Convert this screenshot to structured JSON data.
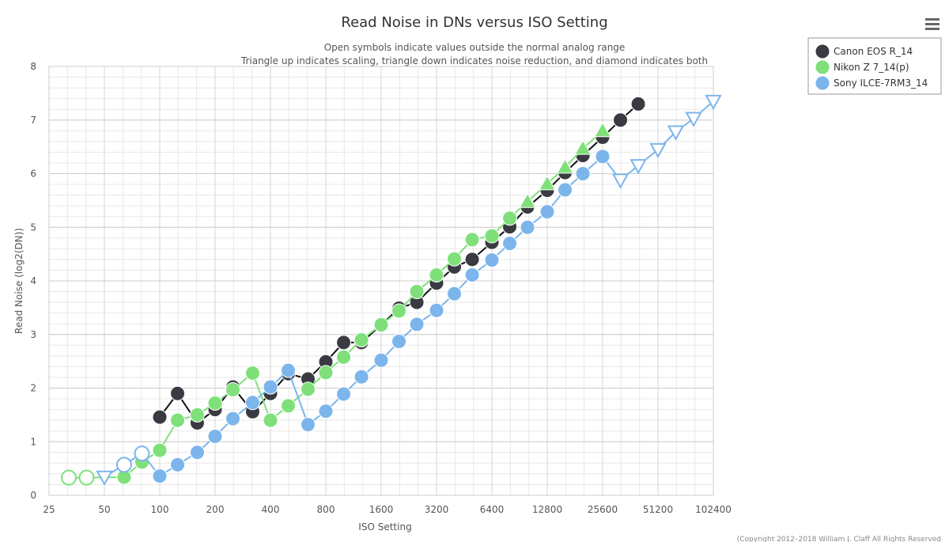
{
  "chart_data": {
    "type": "line",
    "title": "Read Noise in DNs versus ISO Setting",
    "subtitle_lines": [
      "Open symbols indicate values outside the normal analog range",
      "Triangle up indicates scaling, triangle down indicates noise reduction, and diamond indicates both"
    ],
    "xlabel": "ISO Setting",
    "ylabel": "Read Noise (log2(DN))",
    "x_scale": "log2",
    "xlim": [
      25,
      102400
    ],
    "ylim": [
      0,
      8
    ],
    "x_ticks": [
      25,
      50,
      100,
      200,
      400,
      800,
      1600,
      3200,
      6400,
      12800,
      25600,
      51200,
      102400
    ],
    "y_ticks": [
      0,
      1,
      2,
      3,
      4,
      5,
      6,
      7,
      8
    ],
    "grid": true,
    "legend_position": "top-right",
    "credits": "(Copyright 2012–2018 William J. Claff All Rights Reserved",
    "series": [
      {
        "name": "Canon EOS R_14",
        "color": "#3a3a42",
        "line_color": "#111111",
        "points": [
          {
            "x": 100,
            "y": 1.46,
            "m": "circle"
          },
          {
            "x": 125,
            "y": 1.9,
            "m": "circle"
          },
          {
            "x": 160,
            "y": 1.35,
            "m": "circle"
          },
          {
            "x": 200,
            "y": 1.6,
            "m": "circle"
          },
          {
            "x": 250,
            "y": 2.02,
            "m": "circle"
          },
          {
            "x": 320,
            "y": 1.56,
            "m": "circle"
          },
          {
            "x": 400,
            "y": 1.9,
            "m": "circle"
          },
          {
            "x": 500,
            "y": 2.27,
            "m": "circle"
          },
          {
            "x": 640,
            "y": 2.17,
            "m": "circle"
          },
          {
            "x": 800,
            "y": 2.49,
            "m": "circle"
          },
          {
            "x": 1000,
            "y": 2.85,
            "m": "circle"
          },
          {
            "x": 1250,
            "y": 2.85,
            "m": "circle"
          },
          {
            "x": 1600,
            "y": 3.18,
            "m": "circle"
          },
          {
            "x": 2000,
            "y": 3.49,
            "m": "circle"
          },
          {
            "x": 2500,
            "y": 3.6,
            "m": "circle"
          },
          {
            "x": 3200,
            "y": 3.96,
            "m": "circle"
          },
          {
            "x": 4000,
            "y": 4.26,
            "m": "circle"
          },
          {
            "x": 5000,
            "y": 4.4,
            "m": "circle"
          },
          {
            "x": 6400,
            "y": 4.72,
            "m": "circle"
          },
          {
            "x": 8000,
            "y": 5.01,
            "m": "circle"
          },
          {
            "x": 10000,
            "y": 5.38,
            "m": "circle"
          },
          {
            "x": 12800,
            "y": 5.69,
            "m": "circle"
          },
          {
            "x": 16000,
            "y": 6.02,
            "m": "circle"
          },
          {
            "x": 20000,
            "y": 6.34,
            "m": "circle"
          },
          {
            "x": 25600,
            "y": 6.68,
            "m": "circle"
          },
          {
            "x": 32000,
            "y": 7.0,
            "m": "circle"
          },
          {
            "x": 40000,
            "y": 7.3,
            "m": "circle"
          }
        ]
      },
      {
        "name": "Nikon Z 7_14(p)",
        "color": "#7fe07a",
        "line_color": "#7fe07a",
        "points": [
          {
            "x": 32,
            "y": 0.33,
            "m": "circle",
            "open": true
          },
          {
            "x": 40,
            "y": 0.33,
            "m": "circle",
            "open": true
          },
          {
            "x": 64,
            "y": 0.34,
            "m": "circle"
          },
          {
            "x": 80,
            "y": 0.62,
            "m": "circle"
          },
          {
            "x": 100,
            "y": 0.84,
            "m": "circle"
          },
          {
            "x": 125,
            "y": 1.4,
            "m": "circle"
          },
          {
            "x": 160,
            "y": 1.5,
            "m": "circle"
          },
          {
            "x": 200,
            "y": 1.72,
            "m": "circle"
          },
          {
            "x": 250,
            "y": 1.97,
            "m": "circle"
          },
          {
            "x": 320,
            "y": 2.28,
            "m": "circle"
          },
          {
            "x": 400,
            "y": 1.4,
            "m": "circle"
          },
          {
            "x": 500,
            "y": 1.67,
            "m": "circle"
          },
          {
            "x": 640,
            "y": 1.98,
            "m": "circle"
          },
          {
            "x": 800,
            "y": 2.29,
            "m": "circle"
          },
          {
            "x": 1000,
            "y": 2.58,
            "m": "circle"
          },
          {
            "x": 1250,
            "y": 2.9,
            "m": "circle"
          },
          {
            "x": 1600,
            "y": 3.18,
            "m": "circle"
          },
          {
            "x": 2000,
            "y": 3.44,
            "m": "circle"
          },
          {
            "x": 2500,
            "y": 3.8,
            "m": "circle"
          },
          {
            "x": 3200,
            "y": 4.11,
            "m": "circle"
          },
          {
            "x": 4000,
            "y": 4.41,
            "m": "circle"
          },
          {
            "x": 5000,
            "y": 4.77,
            "m": "circle"
          },
          {
            "x": 6400,
            "y": 4.84,
            "m": "circle"
          },
          {
            "x": 8000,
            "y": 5.17,
            "m": "circle"
          },
          {
            "x": 10000,
            "y": 5.48,
            "m": "triangle-up"
          },
          {
            "x": 12800,
            "y": 5.81,
            "m": "triangle-up"
          },
          {
            "x": 16000,
            "y": 6.12,
            "m": "triangle-up"
          },
          {
            "x": 20000,
            "y": 6.47,
            "m": "triangle-up"
          },
          {
            "x": 25600,
            "y": 6.8,
            "m": "triangle-up"
          }
        ]
      },
      {
        "name": "Sony ILCE-7RM3_14",
        "color": "#7cb5ec",
        "line_color": "#7cb5ec",
        "points": [
          {
            "x": 50,
            "y": 0.34,
            "m": "triangle-down",
            "open": true
          },
          {
            "x": 64,
            "y": 0.57,
            "m": "circle",
            "open": true
          },
          {
            "x": 80,
            "y": 0.78,
            "m": "circle",
            "open": true
          },
          {
            "x": 100,
            "y": 0.36,
            "m": "circle"
          },
          {
            "x": 125,
            "y": 0.57,
            "m": "circle"
          },
          {
            "x": 160,
            "y": 0.8,
            "m": "circle"
          },
          {
            "x": 200,
            "y": 1.1,
            "m": "circle"
          },
          {
            "x": 250,
            "y": 1.43,
            "m": "circle"
          },
          {
            "x": 320,
            "y": 1.73,
            "m": "circle"
          },
          {
            "x": 400,
            "y": 2.02,
            "m": "circle"
          },
          {
            "x": 500,
            "y": 2.33,
            "m": "circle"
          },
          {
            "x": 640,
            "y": 1.32,
            "m": "circle"
          },
          {
            "x": 800,
            "y": 1.57,
            "m": "circle"
          },
          {
            "x": 1000,
            "y": 1.89,
            "m": "circle"
          },
          {
            "x": 1250,
            "y": 2.21,
            "m": "circle"
          },
          {
            "x": 1600,
            "y": 2.52,
            "m": "circle"
          },
          {
            "x": 2000,
            "y": 2.87,
            "m": "circle"
          },
          {
            "x": 2500,
            "y": 3.19,
            "m": "circle"
          },
          {
            "x": 3200,
            "y": 3.45,
            "m": "circle"
          },
          {
            "x": 4000,
            "y": 3.76,
            "m": "circle"
          },
          {
            "x": 5000,
            "y": 4.11,
            "m": "circle"
          },
          {
            "x": 6400,
            "y": 4.39,
            "m": "circle"
          },
          {
            "x": 8000,
            "y": 4.7,
            "m": "circle"
          },
          {
            "x": 10000,
            "y": 5.0,
            "m": "circle"
          },
          {
            "x": 12800,
            "y": 5.29,
            "m": "circle"
          },
          {
            "x": 16000,
            "y": 5.7,
            "m": "circle"
          },
          {
            "x": 20000,
            "y": 6.0,
            "m": "circle"
          },
          {
            "x": 25600,
            "y": 6.32,
            "m": "circle"
          },
          {
            "x": 32000,
            "y": 5.88,
            "m": "triangle-down",
            "open": true
          },
          {
            "x": 40000,
            "y": 6.15,
            "m": "triangle-down",
            "open": true
          },
          {
            "x": 51200,
            "y": 6.45,
            "m": "triangle-down",
            "open": true
          },
          {
            "x": 64000,
            "y": 6.78,
            "m": "triangle-down",
            "open": true
          },
          {
            "x": 80000,
            "y": 7.03,
            "m": "triangle-down",
            "open": true
          },
          {
            "x": 102400,
            "y": 7.35,
            "m": "triangle-down",
            "open": true
          }
        ]
      }
    ]
  }
}
